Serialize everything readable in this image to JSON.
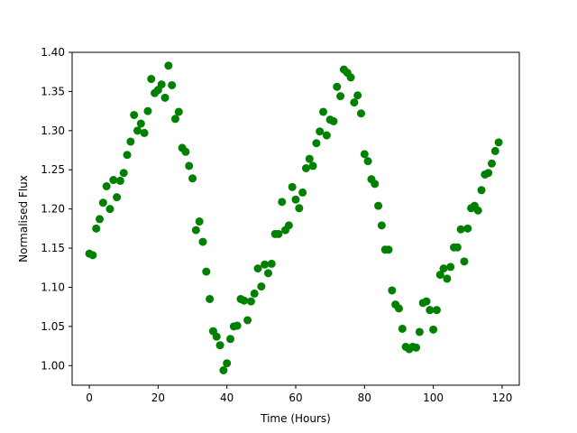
{
  "chart_data": {
    "type": "scatter",
    "title": "",
    "xlabel": "Time (Hours)",
    "ylabel": "Normalised Flux",
    "xlim": [
      -5,
      125
    ],
    "ylim": [
      0.975,
      1.4
    ],
    "xticks": [
      0,
      20,
      40,
      60,
      80,
      100,
      120
    ],
    "xtick_labels": [
      "0",
      "20",
      "40",
      "60",
      "80",
      "100",
      "120"
    ],
    "yticks": [
      1.0,
      1.05,
      1.1,
      1.15,
      1.2,
      1.25,
      1.3,
      1.35,
      1.4
    ],
    "ytick_labels": [
      "1.00",
      "1.05",
      "1.10",
      "1.15",
      "1.20",
      "1.25",
      "1.30",
      "1.35",
      "1.40"
    ],
    "grid": false,
    "legend": false,
    "marker_color": "#008000",
    "series": [
      {
        "points": [
          [
            0,
            1.143
          ],
          [
            1,
            1.141
          ],
          [
            2,
            1.175
          ],
          [
            3,
            1.187
          ],
          [
            4,
            1.208
          ],
          [
            5,
            1.229
          ],
          [
            6,
            1.2
          ],
          [
            7,
            1.237
          ],
          [
            8,
            1.215
          ],
          [
            9,
            1.236
          ],
          [
            10,
            1.246
          ],
          [
            11,
            1.269
          ],
          [
            12,
            1.286
          ],
          [
            13,
            1.32
          ],
          [
            14,
            1.3
          ],
          [
            15,
            1.309
          ],
          [
            16,
            1.297
          ],
          [
            17,
            1.325
          ],
          [
            18,
            1.366
          ],
          [
            19,
            1.348
          ],
          [
            20,
            1.352
          ],
          [
            21,
            1.359
          ],
          [
            22,
            1.342
          ],
          [
            23,
            1.383
          ],
          [
            24,
            1.358
          ],
          [
            25,
            1.315
          ],
          [
            26,
            1.324
          ],
          [
            27,
            1.278
          ],
          [
            28,
            1.273
          ],
          [
            29,
            1.255
          ],
          [
            30,
            1.239
          ],
          [
            31,
            1.173
          ],
          [
            32,
            1.184
          ],
          [
            33,
            1.158
          ],
          [
            34,
            1.12
          ],
          [
            35,
            1.085
          ],
          [
            36,
            1.044
          ],
          [
            37,
            1.037
          ],
          [
            38,
            1.026
          ],
          [
            39,
            0.994
          ],
          [
            40,
            1.003
          ],
          [
            41,
            1.034
          ],
          [
            42,
            1.05
          ],
          [
            43,
            1.051
          ],
          [
            44,
            1.085
          ],
          [
            45,
            1.083
          ],
          [
            46,
            1.058
          ],
          [
            47,
            1.082
          ],
          [
            48,
            1.092
          ],
          [
            49,
            1.124
          ],
          [
            50,
            1.101
          ],
          [
            51,
            1.129
          ],
          [
            52,
            1.118
          ],
          [
            53,
            1.13
          ],
          [
            54,
            1.168
          ],
          [
            55,
            1.168
          ],
          [
            56,
            1.209
          ],
          [
            57,
            1.173
          ],
          [
            58,
            1.179
          ],
          [
            59,
            1.228
          ],
          [
            60,
            1.212
          ],
          [
            61,
            1.201
          ],
          [
            62,
            1.221
          ],
          [
            63,
            1.252
          ],
          [
            64,
            1.264
          ],
          [
            65,
            1.255
          ],
          [
            66,
            1.284
          ],
          [
            67,
            1.299
          ],
          [
            68,
            1.324
          ],
          [
            69,
            1.294
          ],
          [
            70,
            1.314
          ],
          [
            71,
            1.312
          ],
          [
            72,
            1.356
          ],
          [
            73,
            1.344
          ],
          [
            74,
            1.378
          ],
          [
            75,
            1.374
          ],
          [
            76,
            1.368
          ],
          [
            77,
            1.336
          ],
          [
            78,
            1.345
          ],
          [
            79,
            1.322
          ],
          [
            80,
            1.27
          ],
          [
            81,
            1.261
          ],
          [
            82,
            1.238
          ],
          [
            83,
            1.232
          ],
          [
            84,
            1.204
          ],
          [
            85,
            1.179
          ],
          [
            86,
            1.148
          ],
          [
            87,
            1.148
          ],
          [
            88,
            1.096
          ],
          [
            89,
            1.078
          ],
          [
            90,
            1.073
          ],
          [
            91,
            1.047
          ],
          [
            92,
            1.024
          ],
          [
            93,
            1.021
          ],
          [
            94,
            1.024
          ],
          [
            95,
            1.023
          ],
          [
            96,
            1.043
          ],
          [
            97,
            1.08
          ],
          [
            98,
            1.082
          ],
          [
            99,
            1.071
          ],
          [
            100,
            1.046
          ],
          [
            101,
            1.071
          ],
          [
            102,
            1.116
          ],
          [
            103,
            1.124
          ],
          [
            104,
            1.111
          ],
          [
            105,
            1.126
          ],
          [
            106,
            1.151
          ],
          [
            107,
            1.151
          ],
          [
            108,
            1.174
          ],
          [
            109,
            1.133
          ],
          [
            110,
            1.175
          ],
          [
            111,
            1.201
          ],
          [
            112,
            1.204
          ],
          [
            113,
            1.198
          ],
          [
            114,
            1.224
          ],
          [
            115,
            1.244
          ],
          [
            116,
            1.246
          ],
          [
            117,
            1.258
          ],
          [
            118,
            1.274
          ],
          [
            119,
            1.285
          ]
        ]
      }
    ]
  }
}
